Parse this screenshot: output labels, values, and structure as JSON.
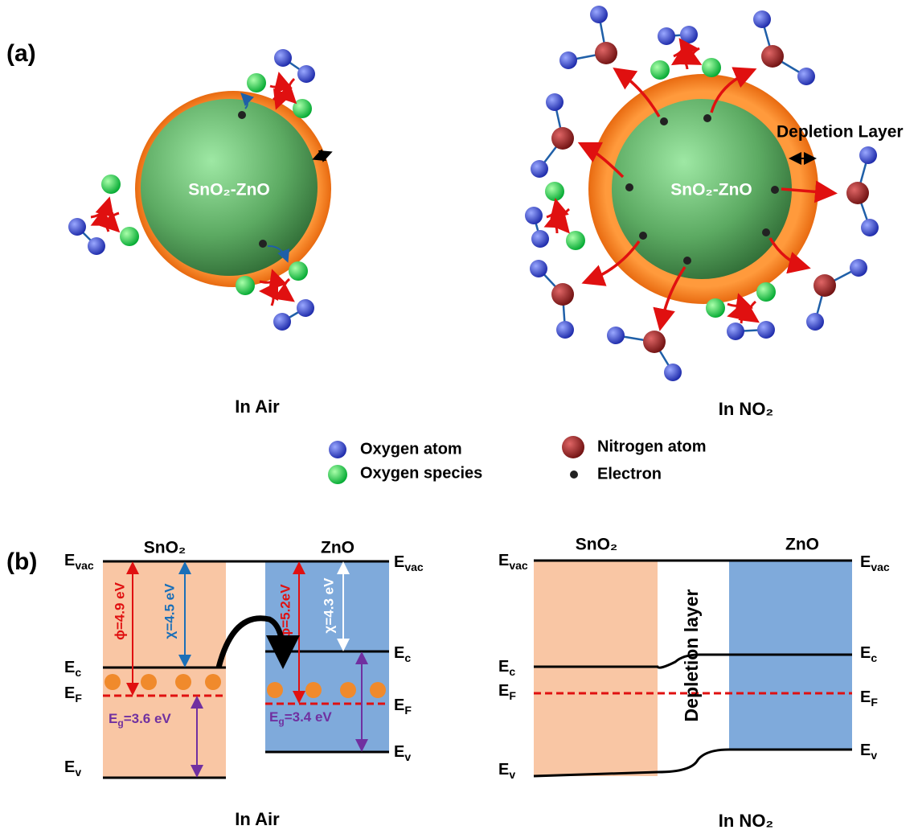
{
  "panel_a": {
    "label": "(a)",
    "in_air": {
      "particle_label": "SnO₂-ZnO",
      "caption": "In Air"
    },
    "in_no2": {
      "particle_label": "SnO₂-ZnO",
      "depletion_label": "Depletion Layer",
      "caption": "In NO₂"
    },
    "legend": [
      "Oxygen atom",
      "Oxygen species",
      "Nitrogen atom",
      "Electron"
    ]
  },
  "panel_b": {
    "label": "(b)",
    "in_air": {
      "materials": [
        "SnO₂",
        "ZnO"
      ],
      "levels_left": [
        {
          "symbol": "E",
          "sub": "vac"
        },
        {
          "symbol": "E",
          "sub": "c"
        },
        {
          "symbol": "E",
          "sub": "F"
        },
        {
          "symbol": "E",
          "sub": "v"
        }
      ],
      "levels_right": [
        {
          "symbol": "E",
          "sub": "vac"
        },
        {
          "symbol": "E",
          "sub": "c"
        },
        {
          "symbol": "E",
          "sub": "F"
        },
        {
          "symbol": "E",
          "sub": "v"
        }
      ],
      "annotations": [
        "ϕ=4.9 eV",
        "χ=4.5 eV",
        "ϕ=5.2eV",
        "χ=4.3 eV"
      ],
      "band_gaps": [
        {
          "symbol": "E",
          "sub": "g",
          "rest": "=3.6 eV"
        },
        {
          "symbol": "E",
          "sub": "g",
          "rest": "=3.4 eV"
        }
      ],
      "caption": "In Air"
    },
    "in_no2": {
      "materials": [
        "SnO₂",
        "ZnO"
      ],
      "depletion_label": "Depletion layer",
      "levels_left": [
        {
          "symbol": "E",
          "sub": "vac"
        },
        {
          "symbol": "E",
          "sub": "c"
        },
        {
          "symbol": "E",
          "sub": "F"
        },
        {
          "symbol": "E",
          "sub": "v"
        }
      ],
      "levels_right": [
        {
          "symbol": "E",
          "sub": "vac"
        },
        {
          "symbol": "E",
          "sub": "c"
        },
        {
          "symbol": "E",
          "sub": "F"
        },
        {
          "symbol": "E",
          "sub": "v"
        }
      ],
      "caption": "In NO₂"
    }
  }
}
